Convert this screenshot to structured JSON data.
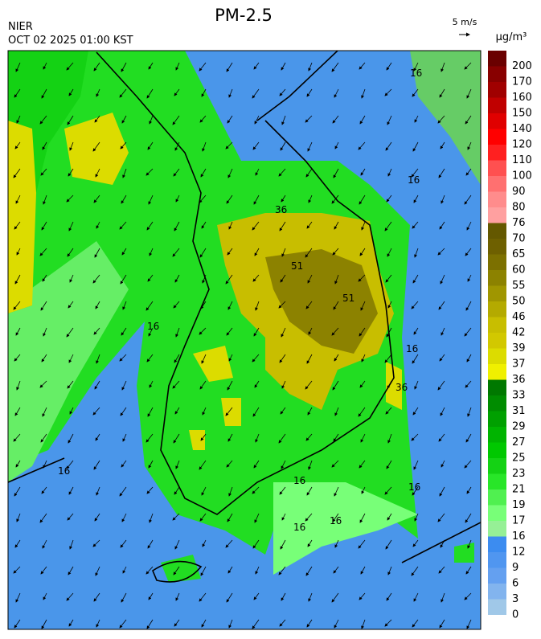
{
  "header": {
    "title": "PM-2.5",
    "agency": "NIER",
    "time": "OCT 02 2025 01:00 KST",
    "wind_scale": "5 m/s"
  },
  "map": {
    "contour_labels": [
      "16",
      "16",
      "16",
      "16",
      "16",
      "16",
      "16",
      "16",
      "36",
      "51",
      "51",
      "36",
      "16"
    ],
    "colorbar": {
      "unit": "μg/m³",
      "levels": [
        0,
        3,
        6,
        9,
        12,
        16,
        17,
        19,
        21,
        23,
        25,
        27,
        29,
        31,
        33,
        36,
        37,
        39,
        42,
        46,
        50,
        55,
        60,
        65,
        70,
        76,
        80,
        90,
        100,
        110,
        120,
        140,
        150,
        160,
        170,
        200
      ],
      "colors": [
        "#a0c8e8",
        "#82b4ee",
        "#64a0f0",
        "#5096f0",
        "#3c8cf0",
        "#96f096",
        "#78ff78",
        "#50f050",
        "#28e628",
        "#14d214",
        "#00c800",
        "#00b400",
        "#00a000",
        "#008c00",
        "#007800",
        "#f0f000",
        "#dcdc00",
        "#d2c800",
        "#c8be00",
        "#b4aa00",
        "#a09600",
        "#8c8200",
        "#7c7000",
        "#6e6000",
        "#645800",
        "#ffa0a0",
        "#ff8c8c",
        "#ff7070",
        "#ff5050",
        "#ff2020",
        "#ff0000",
        "#e00000",
        "#c00000",
        "#a00000",
        "#880000",
        "#6a0000"
      ]
    }
  }
}
